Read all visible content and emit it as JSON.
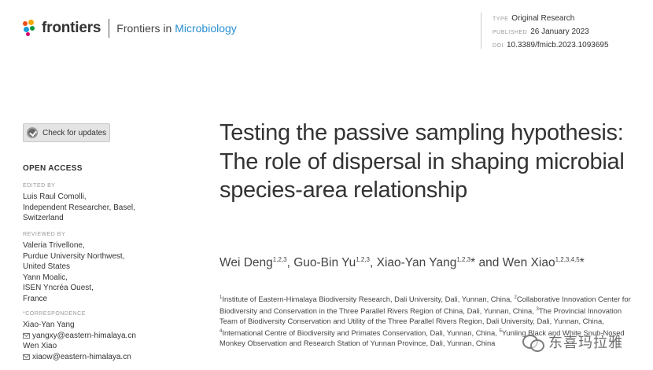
{
  "header": {
    "brand": "frontiers",
    "journal_prefix": "Frontiers in ",
    "journal_name": "Microbiology"
  },
  "meta": {
    "type_label": "TYPE",
    "type_value": "Original Research",
    "published_label": "PUBLISHED",
    "published_value": "26 January 2023",
    "doi_label": "DOI",
    "doi_value": "10.3389/fmicb.2023.1093695"
  },
  "sidebar": {
    "check_updates": "Check for updates",
    "open_access": "OPEN ACCESS",
    "edited_by_label": "EDITED BY",
    "edited_by_lines": [
      "Luis Raul Comolli,",
      "Independent Researcher, Basel,",
      "Switzerland"
    ],
    "reviewed_by_label": "REVIEWED BY",
    "reviewed_by_lines": [
      "Valeria Trivellone,",
      "Purdue University Northwest,",
      "United States",
      "Yann Moalic,",
      "ISEN Yncréa Ouest,",
      "France"
    ],
    "correspondence_label": "*CORRESPONDENCE",
    "correspondents": [
      {
        "name": "Xiao-Yan Yang",
        "email": "yangxy@eastern-himalaya.cn"
      },
      {
        "name": "Wen Xiao",
        "email": "xiaow@eastern-himalaya.cn"
      }
    ]
  },
  "article": {
    "title": "Testing the passive sampling hypothesis: The role of dispersal in shaping microbial species-area relationship",
    "authors": [
      {
        "name": "Wei Deng",
        "sup": "1,2,3",
        "sep": ", "
      },
      {
        "name": "Guo-Bin Yu",
        "sup": "1,2,3",
        "sep": ", "
      },
      {
        "name": "Xiao-Yan Yang",
        "sup": "1,2,3",
        "mark": "*",
        "sep": " and "
      },
      {
        "name": "Wen Xiao",
        "sup": "1,2,3,4,5",
        "mark": "*",
        "sep": ""
      }
    ],
    "affiliations": [
      {
        "sup": "1",
        "text": "Institute of Eastern-Himalaya Biodiversity Research, Dali University, Dali, Yunnan, China, "
      },
      {
        "sup": "2",
        "text": "Collaborative Innovation Center for Biodiversity and Conservation in the Three Parallel Rivers Region of China, Dali, Yunnan, China, "
      },
      {
        "sup": "3",
        "text": "The Provincial Innovation Team of Biodiversity Conservation and Utility of the Three Parallel Rivers Region, Dali University, Dali, Yunnan, China, "
      },
      {
        "sup": "4",
        "text": "International Centre of Biodiversity and Primates Conservation, Dali, Yunnan, China, "
      },
      {
        "sup": "5",
        "text": "Yunling Black and White Snub-Nosed Monkey Observation and Research Station of Yunnan Province, Dali, Yunnan, China"
      }
    ]
  },
  "watermark": {
    "text": "东喜玛拉雅"
  }
}
